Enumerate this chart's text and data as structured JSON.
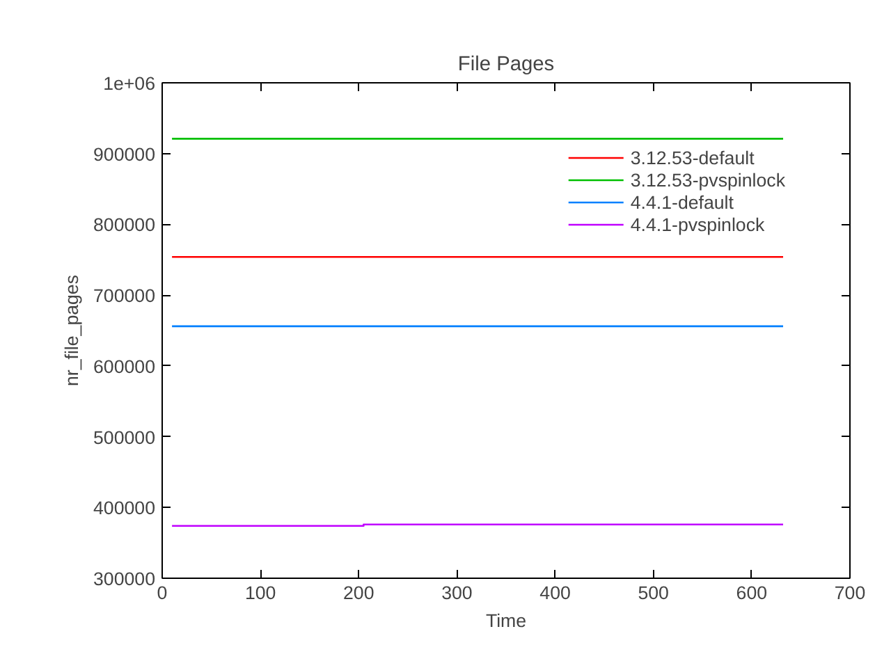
{
  "chart_data": {
    "type": "line",
    "title": "File Pages",
    "xlabel": "Time",
    "ylabel": "nr_file_pages",
    "xlim": [
      0,
      700
    ],
    "xticks": [
      0,
      100,
      200,
      300,
      400,
      500,
      600,
      700
    ],
    "ylim": [
      300000,
      1000000
    ],
    "yticks": [
      300000,
      400000,
      500000,
      600000,
      700000,
      800000,
      900000,
      {
        "value": 1000000,
        "label": "1e+06"
      }
    ],
    "grid": false,
    "legend": "top right",
    "marker": "none",
    "line_style": "solid",
    "series": [
      {
        "name": "3.12.53-default",
        "color": "#ff0000",
        "x": [
          10,
          632
        ],
        "values": [
          754000,
          754000
        ]
      },
      {
        "name": "3.12.53-pvspinlock",
        "color": "#00c000",
        "x": [
          10,
          632
        ],
        "values": [
          921000,
          921000
        ]
      },
      {
        "name": "4.4.1-default",
        "color": "#0080ff",
        "x": [
          10,
          632
        ],
        "values": [
          656000,
          656000
        ]
      },
      {
        "name": "4.4.1-pvspinlock",
        "color": "#c000ff",
        "x": [
          10,
          205,
          205,
          632
        ],
        "values": [
          374000,
          374000,
          376000,
          376000
        ]
      }
    ]
  }
}
